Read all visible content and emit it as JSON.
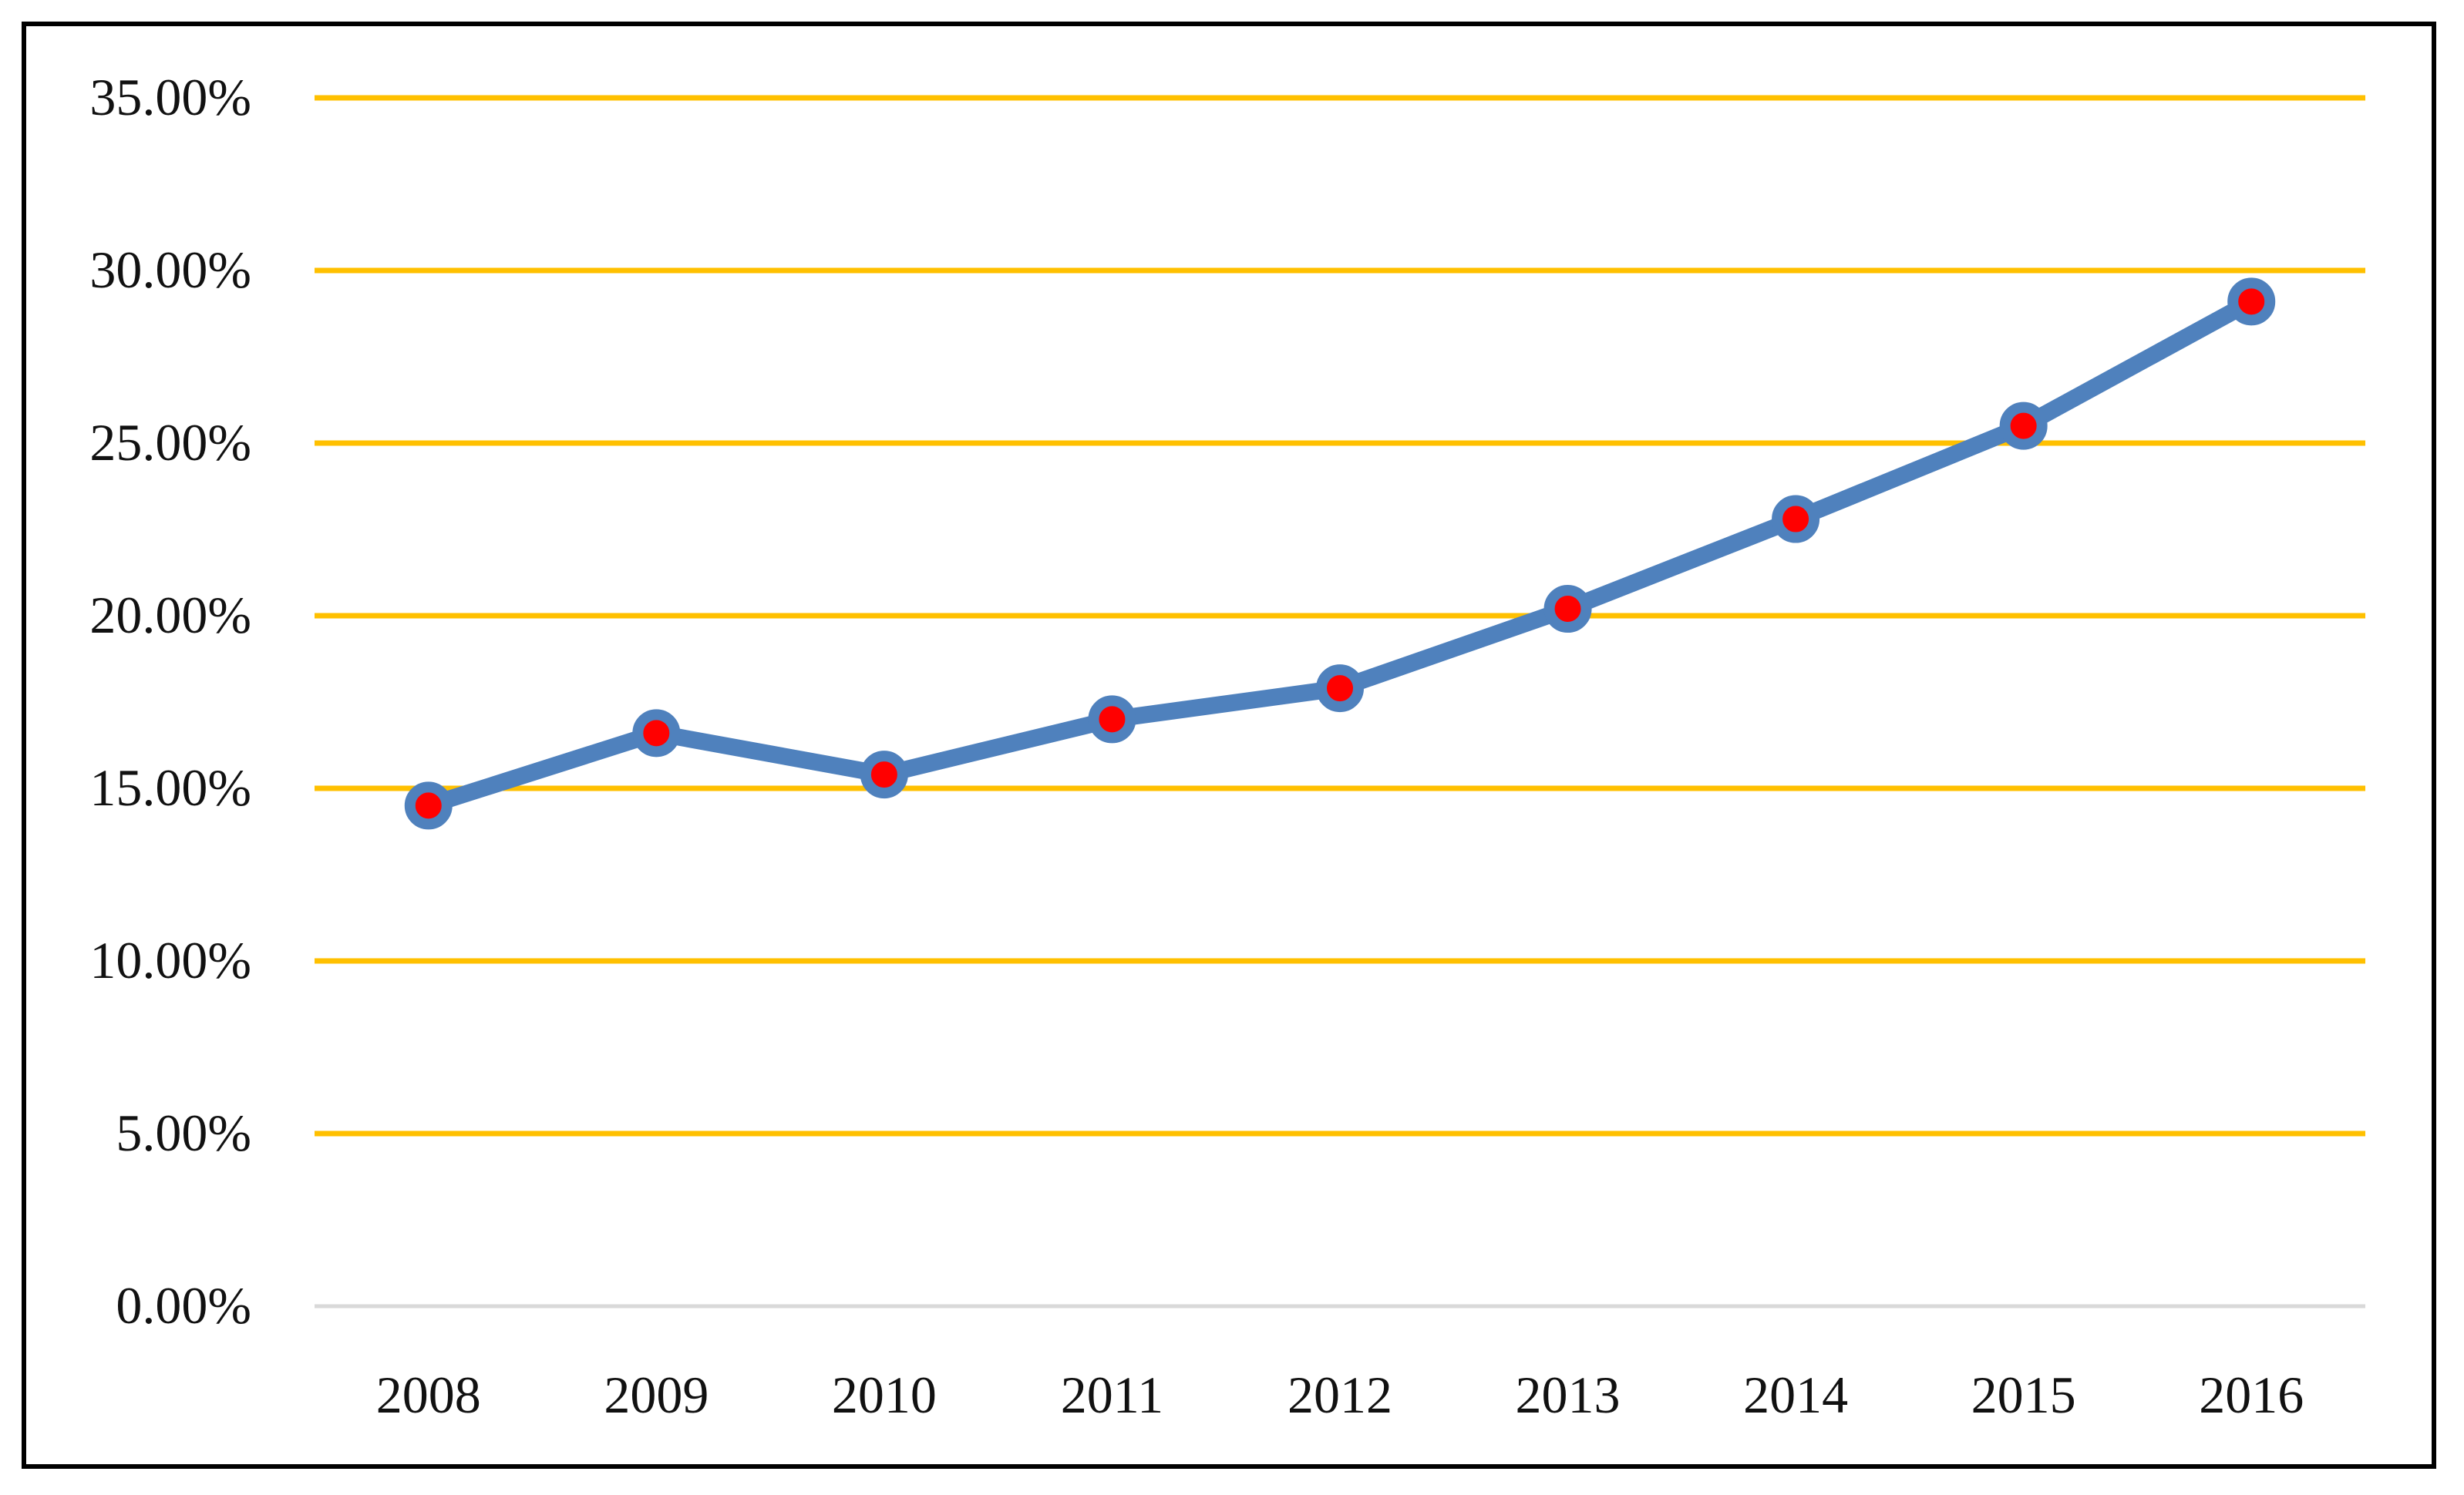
{
  "chart_data": {
    "type": "line",
    "title": "",
    "xlabel": "",
    "ylabel": "",
    "categories": [
      "2008",
      "2009",
      "2010",
      "2011",
      "2012",
      "2013",
      "2014",
      "2015",
      "2016"
    ],
    "series": [
      {
        "values": [
          14.5,
          16.6,
          15.4,
          17.0,
          17.9,
          20.2,
          22.8,
          25.5,
          29.1
        ]
      }
    ],
    "ylim": [
      0,
      35
    ],
    "yticks": [
      0,
      5,
      10,
      15,
      20,
      25,
      30,
      35
    ],
    "ytick_labels": [
      "0.00%",
      "5.00%",
      "10.00%",
      "15.00%",
      "20.00%",
      "25.00%",
      "30.00%",
      "35.00%"
    ],
    "grid": true,
    "legend": "none",
    "colors": {
      "line": "#4F81BD",
      "marker_fill": "#FF0000",
      "gridline": "#FFC000",
      "baseline": "#D9D9D9",
      "frame": "#000000"
    }
  }
}
